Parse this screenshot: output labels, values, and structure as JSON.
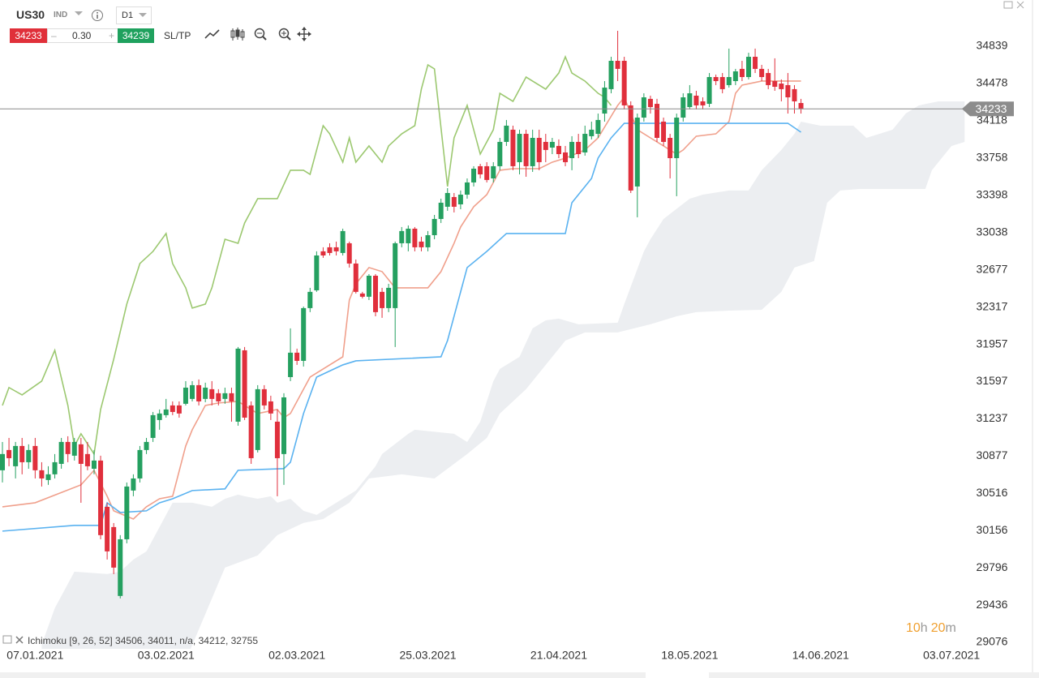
{
  "header": {
    "symbol": "US30",
    "market": "IND",
    "timeframe": "D1"
  },
  "trade": {
    "sell": 34233,
    "spread": "0.30",
    "buy": 34239,
    "sltp": "SL/TP"
  },
  "indicator": "Ichimoku [9, 26, 52] 34506, 34011, n/a, 34212, 32755",
  "countdown": [
    "10",
    "h",
    "20",
    "m"
  ],
  "chart_data": {
    "type": "candlestick",
    "categories": [
      null,
      null,
      null,
      null,
      null,
      "07.01.2021",
      null,
      null,
      null,
      null,
      null,
      null,
      null,
      null,
      null,
      null,
      null,
      null,
      null,
      null,
      null,
      null,
      null,
      null,
      null,
      "03.02.2021",
      null,
      null,
      null,
      null,
      null,
      null,
      null,
      null,
      null,
      null,
      null,
      null,
      null,
      null,
      null,
      null,
      null,
      null,
      null,
      "02.03.2021",
      null,
      null,
      null,
      null,
      null,
      null,
      null,
      null,
      null,
      null,
      null,
      null,
      null,
      null,
      null,
      null,
      null,
      null,
      null,
      "25.03.2021",
      null,
      null,
      null,
      null,
      null,
      null,
      null,
      null,
      null,
      null,
      null,
      null,
      null,
      null,
      null,
      null,
      null,
      null,
      null,
      "21.04.2021",
      null,
      null,
      null,
      null,
      null,
      null,
      null,
      null,
      null,
      null,
      null,
      null,
      null,
      null,
      null,
      null,
      null,
      null,
      null,
      "18.05.2021",
      null,
      null,
      null,
      null,
      null,
      null,
      null,
      null,
      null,
      null,
      null,
      null,
      null,
      null,
      null,
      null,
      null,
      null,
      null,
      "14.06.2021",
      null,
      null,
      null,
      null,
      null,
      null,
      null,
      null,
      null,
      null,
      null,
      null,
      null,
      null,
      null,
      null,
      null,
      null,
      null,
      "03.07.2021",
      null,
      null
    ],
    "open": [
      30739,
      30935,
      30778,
      30974,
      30817,
      30974,
      30739,
      30645,
      30700,
      30801,
      31013,
      30880,
      30990,
      30896,
      30754,
      30833,
      30386,
      30190,
      29524,
      30072,
      30543,
      30660,
      30935,
      31052,
      31225,
      31272,
      31366,
      31366,
      31382,
      31429,
      31562,
      31429,
      31523,
      31484,
      31429,
      31484,
      31209,
      31899,
      31366,
      30935,
      31523,
      31405,
      31209,
      30896,
      31640,
      31876,
      31797,
      32307,
      32479,
      32856,
      32895,
      32895,
      32840,
      32934,
      32738,
      32448,
      32417,
      32620,
      32464,
      32307,
      32307,
      32934,
      32934,
      33075,
      32950,
      32895,
      33012,
      33169,
      33287,
      33381,
      33310,
      33404,
      33522,
      33679,
      33679,
      33561,
      33679,
      33914,
      34032,
      33718,
      33992,
      33679,
      33953,
      33914,
      33859,
      33875,
      33812,
      33757,
      33914,
      33812,
      33969,
      33992,
      34188,
      34424,
      34698,
      34698,
      34267,
      33483,
      34149,
      34330,
      34282,
      34110,
      33953,
      33757,
      34149,
      34251,
      34361,
      34306,
      34282,
      34541,
      34541,
      34463,
      34502,
      34620,
      34541,
      34737,
      34620,
      34580,
      34502,
      34478,
      34463,
      34424,
      34290,
      null,
      null,
      null,
      null,
      null,
      null,
      null,
      null,
      null,
      null,
      null,
      null,
      null,
      null,
      null,
      null,
      null,
      null,
      null,
      null,
      null,
      null,
      null,
      null,
      null
    ],
    "high": [
      31013,
      31052,
      31013,
      31052,
      30990,
      31052,
      30817,
      30778,
      30896,
      31052,
      31068,
      31052,
      31052,
      31013,
      30935,
      30880,
      30425,
      30229,
      30112,
      30621,
      30700,
      30974,
      31052,
      31303,
      31327,
      31429,
      31405,
      31405,
      31601,
      31601,
      31617,
      31586,
      31601,
      31523,
      31538,
      31538,
      31931,
      31931,
      31405,
      31562,
      31562,
      31460,
      31327,
      31484,
      32111,
      31915,
      32322,
      32503,
      32856,
      32895,
      32934,
      32950,
      33075,
      32950,
      32777,
      32464,
      32636,
      32636,
      32503,
      32542,
      32950,
      33091,
      33106,
      33091,
      32997,
      33052,
      33208,
      33365,
      33467,
      33420,
      33444,
      33561,
      33679,
      33702,
      33718,
      33718,
      33953,
      34126,
      34071,
      34032,
      34032,
      34032,
      34032,
      33992,
      33953,
      33938,
      33875,
      33969,
      33992,
      34071,
      34110,
      34188,
      34502,
      34737,
      34988,
      34737,
      34306,
      34188,
      34384,
      34361,
      34330,
      34149,
      33992,
      34188,
      34384,
      34463,
      34408,
      34345,
      34580,
      34565,
      34580,
      34816,
      34620,
      34698,
      34776,
      34816,
      34659,
      34620,
      34722,
      34518,
      34580,
      34463,
      34330,
      null,
      null,
      null,
      null,
      null,
      null,
      null,
      null,
      null,
      null,
      null,
      null,
      null,
      null,
      null,
      null,
      null,
      null,
      null,
      null,
      null,
      null,
      null,
      null,
      null
    ],
    "low": [
      30621,
      30778,
      30660,
      30700,
      30754,
      30660,
      30582,
      30598,
      30660,
      30754,
      30817,
      30833,
      30425,
      30739,
      30700,
      30072,
      29876,
      29735,
      29500,
      30033,
      30488,
      30621,
      30896,
      31013,
      31131,
      31248,
      31272,
      31248,
      31366,
      31405,
      31366,
      31397,
      31366,
      31366,
      31382,
      31209,
      31170,
      31225,
      30801,
      30911,
      31327,
      31225,
      30488,
      30598,
      31601,
      31758,
      31742,
      32268,
      32464,
      32793,
      32816,
      32816,
      32816,
      32699,
      32448,
      32401,
      32385,
      32228,
      32213,
      32268,
      31931,
      32895,
      32856,
      32856,
      32856,
      32856,
      32973,
      33130,
      33248,
      33232,
      33263,
      33365,
      33483,
      33561,
      33522,
      33522,
      33640,
      33875,
      33640,
      33600,
      33577,
      33624,
      33640,
      33718,
      33796,
      33757,
      33679,
      33640,
      33757,
      33781,
      33938,
      33953,
      34110,
      34384,
      34502,
      34228,
      33420,
      33185,
      34110,
      34188,
      33914,
      33875,
      33561,
      33389,
      34110,
      34228,
      34228,
      34228,
      34251,
      34463,
      34384,
      34439,
      34463,
      34502,
      34518,
      34580,
      34502,
      34424,
      34408,
      34306,
      34188,
      34188,
      34188,
      null,
      null,
      null,
      null,
      null,
      null,
      null,
      null,
      null,
      null,
      null,
      null,
      null,
      null,
      null,
      null,
      null,
      null,
      null,
      null,
      null,
      null,
      null,
      null,
      null
    ],
    "close": [
      30896,
      30856,
      30974,
      30817,
      30935,
      30739,
      30660,
      30700,
      30817,
      31013,
      30896,
      31013,
      30801,
      30778,
      30833,
      30112,
      29955,
      29798,
      30072,
      30582,
      30660,
      30935,
      31013,
      31272,
      31288,
      31327,
      31303,
      31288,
      31538,
      31562,
      31405,
      31538,
      31429,
      31405,
      31484,
      31405,
      31915,
      31248,
      30856,
      31523,
      31366,
      31288,
      30856,
      31444,
      31876,
      31797,
      32307,
      32464,
      32816,
      32816,
      32840,
      32856,
      33052,
      32738,
      32464,
      32417,
      32620,
      32268,
      32307,
      32503,
      32934,
      33052,
      33075,
      32895,
      32895,
      33012,
      33169,
      33326,
      33420,
      33287,
      33404,
      33522,
      33655,
      33600,
      33546,
      33679,
      33914,
      34071,
      33679,
      33992,
      33679,
      33953,
      33718,
      33836,
      33914,
      33796,
      33718,
      33914,
      33796,
      33992,
      34032,
      34126,
      34439,
      34698,
      34620,
      34267,
      33444,
      34149,
      34345,
      34251,
      33953,
      33914,
      33757,
      34149,
      34345,
      34384,
      34267,
      34267,
      34541,
      34502,
      34424,
      34541,
      34596,
      34541,
      34737,
      34620,
      34541,
      34463,
      34447,
      34424,
      34345,
      34306,
      34233,
      null,
      null,
      null,
      null,
      null,
      null,
      null,
      null,
      null,
      null,
      null,
      null,
      null,
      null,
      null,
      null,
      null,
      null,
      null,
      null,
      null,
      null,
      null,
      null,
      null
    ],
    "up_color": "#25a060",
    "down_color": "#e02f3c",
    "ylim": [
      29013,
      35286
    ],
    "yticks": [
      29076,
      29436,
      29796,
      30156,
      30516,
      30877,
      31237,
      31597,
      31957,
      32317,
      32677,
      33038,
      33398,
      33758,
      34118,
      34478,
      34839
    ],
    "last_price": 34233,
    "lines": {
      "tenkan": {
        "color": "#f0a08c",
        "x": [
          0,
          5,
          12,
          14,
          16,
          17,
          20,
          22,
          24,
          26,
          28,
          29,
          31,
          33,
          36,
          37,
          39,
          42,
          43,
          44,
          46,
          47,
          49,
          52,
          53,
          54,
          56,
          58,
          60,
          62,
          65,
          67,
          69,
          70,
          72,
          74,
          76,
          78,
          82,
          84,
          86,
          89,
          91,
          94,
          95,
          97,
          99,
          101,
          103,
          104,
          106,
          109,
          111,
          112,
          113,
          116,
          122
        ],
        "values": [
          30386,
          30425,
          30598,
          30739,
          30488,
          30347,
          30268,
          30386,
          30464,
          30488,
          30974,
          31131,
          31366,
          31390,
          31405,
          31366,
          31288,
          31327,
          31248,
          31288,
          31523,
          31640,
          31719,
          31836,
          32385,
          32542,
          32699,
          32660,
          32503,
          32503,
          32503,
          32660,
          32934,
          33091,
          33287,
          33404,
          33640,
          33655,
          33655,
          33718,
          33757,
          33836,
          33953,
          34267,
          34345,
          34032,
          33953,
          33875,
          33796,
          33836,
          33969,
          33992,
          34110,
          34384,
          34463,
          34502,
          34502
        ]
      },
      "kijun": {
        "color": "#5ab2f0",
        "x": [
          0,
          11,
          15,
          16,
          18,
          22,
          24,
          26,
          29,
          34,
          36,
          43,
          44,
          46,
          48,
          52,
          54,
          67,
          68,
          70,
          71,
          74,
          77,
          86,
          87,
          90,
          91,
          93,
          95,
          120,
          122
        ],
        "values": [
          30151,
          30206,
          30206,
          30425,
          30331,
          30347,
          30425,
          30464,
          30543,
          30559,
          30739,
          30755,
          30817,
          31288,
          31640,
          31758,
          31797,
          31836,
          31993,
          32464,
          32699,
          32855,
          33028,
          33028,
          33326,
          33561,
          33757,
          33953,
          34094,
          34094,
          34008
        ]
      },
      "chikou": {
        "color": "#9cc870",
        "x": [
          0,
          1,
          3,
          6,
          8,
          10,
          11,
          12,
          14,
          15,
          17,
          19,
          21,
          23,
          25,
          26,
          28,
          29,
          31,
          32,
          34,
          36,
          37,
          39,
          42,
          44,
          46,
          47,
          49,
          50,
          52,
          53,
          54,
          56,
          58,
          59,
          61,
          63,
          64,
          65,
          66,
          68,
          69,
          71,
          73,
          75,
          76,
          78,
          80,
          83,
          85,
          86,
          87,
          89,
          91,
          92,
          93
        ],
        "values": [
          31366,
          31539,
          31468,
          31601,
          31899,
          31366,
          30974,
          31092,
          30896,
          31327,
          31813,
          32346,
          32738,
          32855,
          33028,
          32738,
          32503,
          32307,
          32346,
          32503,
          32973,
          32934,
          33130,
          33365,
          33365,
          33640,
          33640,
          33600,
          34071,
          33992,
          33718,
          33953,
          33718,
          33875,
          33718,
          33875,
          33992,
          34071,
          34424,
          34659,
          34620,
          33483,
          33953,
          34267,
          33796,
          34032,
          34384,
          34306,
          34541,
          34424,
          34580,
          34737,
          34580,
          34502,
          34384,
          34345,
          34267
        ]
      }
    },
    "cloud": {
      "color": "#eceef1",
      "upper": {
        "x": [
          6,
          8,
          11,
          16,
          18,
          20,
          22,
          25,
          26,
          29,
          32,
          34,
          36,
          37,
          39,
          41,
          42,
          44,
          46,
          48,
          50,
          54,
          57,
          58,
          62,
          63,
          69,
          71,
          73,
          75,
          76,
          79,
          81,
          83,
          85,
          88,
          94,
          95,
          98,
          99,
          101,
          105,
          107,
          111,
          114,
          116,
          119,
          121,
          122,
          125,
          130,
          132,
          134,
          136,
          138,
          140,
          143,
          147
        ],
        "values": [
          29053,
          29406,
          29759,
          29736,
          29759,
          29876,
          29955,
          30308,
          30425,
          30425,
          30386,
          30464,
          30504,
          30488,
          30464,
          30488,
          30425,
          30464,
          30347,
          30308,
          30386,
          30543,
          30778,
          30896,
          31092,
          31131,
          31092,
          31013,
          31209,
          31601,
          31719,
          31836,
          32111,
          32189,
          32205,
          32150,
          32166,
          32346,
          32855,
          32973,
          33169,
          33365,
          33404,
          33444,
          33444,
          33640,
          33836,
          33992,
          34110,
          34071,
          34071,
          33953,
          33992,
          34032,
          34188,
          34267,
          34306,
          34306
        ]
      },
      "lower": {
        "x": [
          6,
          28,
          34,
          39,
          42,
          46,
          49,
          53,
          56,
          61,
          66,
          71,
          74,
          76,
          80,
          84,
          86,
          89,
          94,
          99,
          103,
          106,
          111,
          116,
          119,
          121,
          124,
          126,
          128,
          131,
          141,
          142,
          145,
          147
        ],
        "values": [
          28900,
          28900,
          29798,
          29916,
          30112,
          30230,
          30268,
          30425,
          30660,
          30700,
          30660,
          30896,
          31052,
          31288,
          31523,
          31836,
          31993,
          32072,
          32072,
          32150,
          32228,
          32268,
          32283,
          32291,
          32464,
          32699,
          32762,
          33326,
          33444,
          33459,
          33459,
          33640,
          33875,
          33914
        ]
      }
    }
  }
}
